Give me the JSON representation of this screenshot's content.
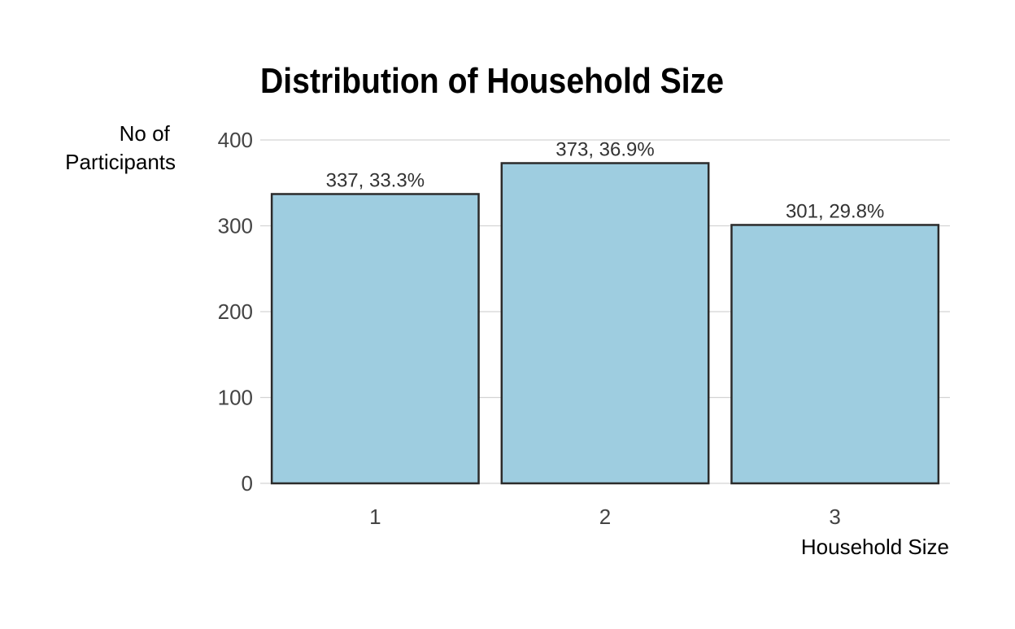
{
  "chart_data": {
    "type": "bar",
    "title": "Distribution of Household Size",
    "xlabel": "Household Size",
    "ylabel_lines": [
      "No of",
      "Participants"
    ],
    "categories": [
      "1",
      "2",
      "3"
    ],
    "values": [
      337,
      373,
      301
    ],
    "data_labels": [
      "337, 33.3%",
      "373, 36.9%",
      "301, 29.8%"
    ],
    "ylim": [
      0,
      400
    ],
    "yticks": [
      0,
      100,
      200,
      300,
      400
    ],
    "grid": "horizontal",
    "legend": "none",
    "bar_color": "#9ecde0",
    "bar_outline_color": "#2b2b2b",
    "grid_color": "#d4d4d4"
  }
}
